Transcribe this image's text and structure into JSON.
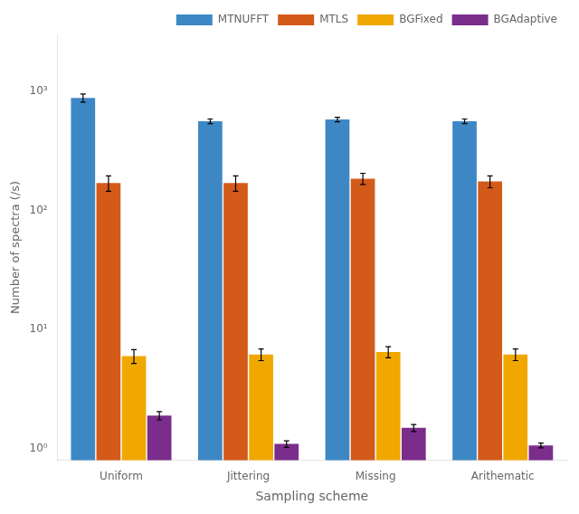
{
  "chart_data": {
    "type": "bar",
    "xlabel": "Sampling scheme",
    "ylabel": "Number of spectra (/s)",
    "categories": [
      "Uniform",
      "Jittering",
      "Missing",
      "Arithematic"
    ],
    "series": [
      {
        "name": "MTNUFFT",
        "color": "#3D88C4",
        "values": [
          880,
          560,
          580,
          560
        ],
        "errors": [
          70,
          25,
          25,
          25
        ]
      },
      {
        "name": "MTLS",
        "color": "#D45A1A",
        "values": [
          170,
          170,
          185,
          175
        ],
        "errors": [
          25,
          25,
          20,
          20
        ]
      },
      {
        "name": "BGFixed",
        "color": "#F0A800",
        "values": [
          6.0,
          6.2,
          6.5,
          6.2
        ],
        "errors": [
          0.8,
          0.7,
          0.7,
          0.7
        ]
      },
      {
        "name": "BGAdaptive",
        "color": "#7B2D8B",
        "values": [
          1.9,
          1.1,
          1.5,
          1.07
        ],
        "errors": [
          0.15,
          0.07,
          0.1,
          0.05
        ]
      }
    ],
    "log": "y",
    "ylim": [
      0.8,
      3000
    ],
    "yticks": [
      {
        "value": 1,
        "label": "10⁰"
      },
      {
        "value": 10,
        "label": "10¹"
      },
      {
        "value": 100,
        "label": "10²"
      },
      {
        "value": 1000,
        "label": "10³"
      }
    ],
    "grid": false,
    "legend": "upper right"
  }
}
